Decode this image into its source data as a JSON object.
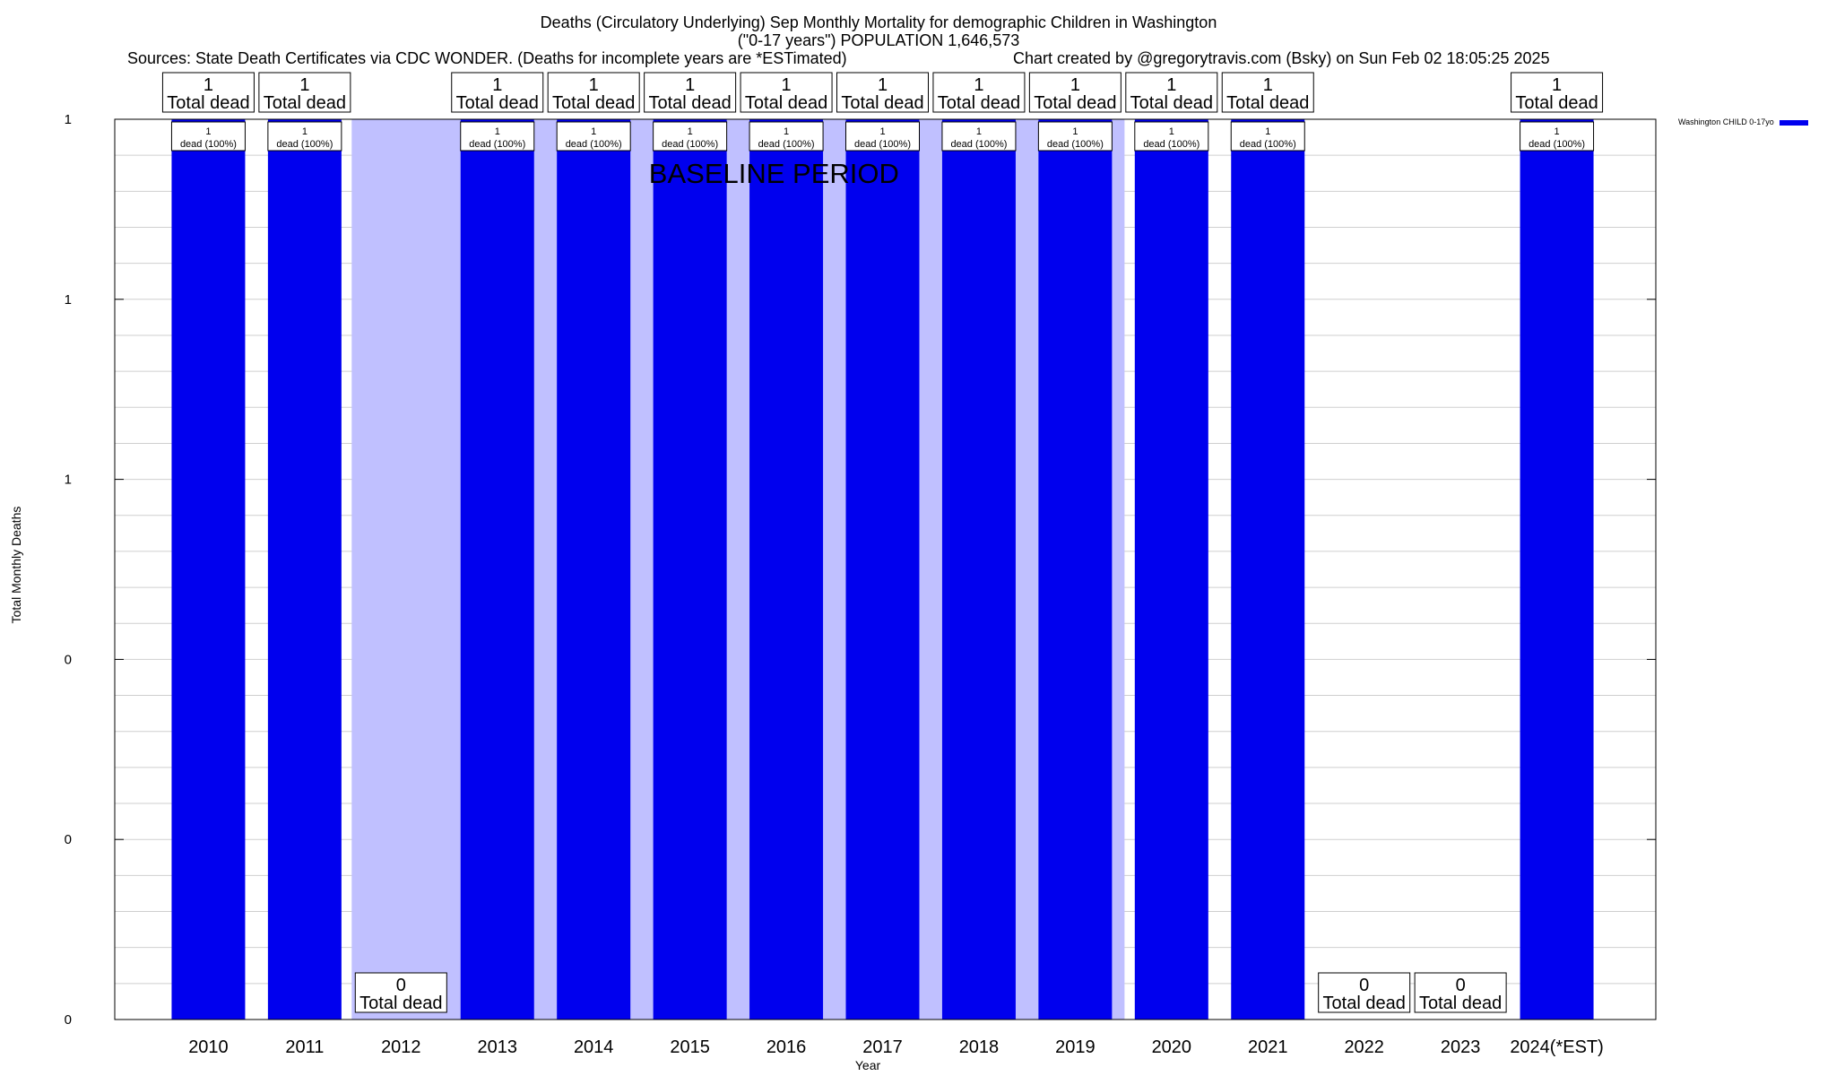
{
  "chart_data": {
    "type": "bar",
    "title": "Deaths (Circulatory Underlying) Sep Monthly Mortality for demographic Children in Washington",
    "subtitle": "(\"0-17 years\") POPULATION 1,646,573",
    "sources": "Sources: State Death Certificates via CDC WONDER. (Deaths for incomplete years are *ESTimated)",
    "credit": "Chart created by @gregorytravis.com (Bsky) on Sun Feb 02 18:05:25 2025",
    "xlabel": "Year",
    "ylabel": "Total Monthly Deaths",
    "ylim": [
      0,
      1
    ],
    "yticks": [
      {
        "value": 0.0,
        "label": "0"
      },
      {
        "value": 0.2,
        "label": "0"
      },
      {
        "value": 0.4,
        "label": "0"
      },
      {
        "value": 0.6,
        "label": "1"
      },
      {
        "value": 0.8,
        "label": "1"
      },
      {
        "value": 1.0,
        "label": "1"
      }
    ],
    "grid": true,
    "legend_position": "top-right",
    "categories": [
      "2010",
      "2011",
      "2012",
      "2013",
      "2014",
      "2015",
      "2016",
      "2017",
      "2018",
      "2019",
      "2020",
      "2021",
      "2022",
      "2023",
      "2024(*EST)"
    ],
    "series": [
      {
        "name": "Washington CHILD 0-17yo",
        "color": "#0000ee",
        "values": [
          1,
          1,
          0,
          1,
          1,
          1,
          1,
          1,
          1,
          1,
          1,
          1,
          0,
          0,
          1
        ]
      }
    ],
    "total_labels": [
      "1",
      "1",
      "0",
      "1",
      "1",
      "1",
      "1",
      "1",
      "1",
      "1",
      "1",
      "1",
      "0",
      "0",
      "1"
    ],
    "total_suffix": "Total dead",
    "bar_labels_top": [
      "1",
      "1",
      "",
      "1",
      "1",
      "1",
      "1",
      "1",
      "1",
      "1",
      "1",
      "1",
      "",
      "",
      "1"
    ],
    "bar_labels_bottom": [
      "dead (100%)",
      "dead (100%)",
      "",
      "dead (100%)",
      "dead (100%)",
      "dead (100%)",
      "dead (100%)",
      "dead (100%)",
      "dead (100%)",
      "dead (100%)",
      "dead (100%)",
      "dead (100%)",
      "",
      "",
      "dead (100%)"
    ],
    "baseline_period": {
      "label": "BASELINE PERIOD",
      "from": "2012",
      "to": "2019",
      "color": "#c0c0ff"
    }
  }
}
